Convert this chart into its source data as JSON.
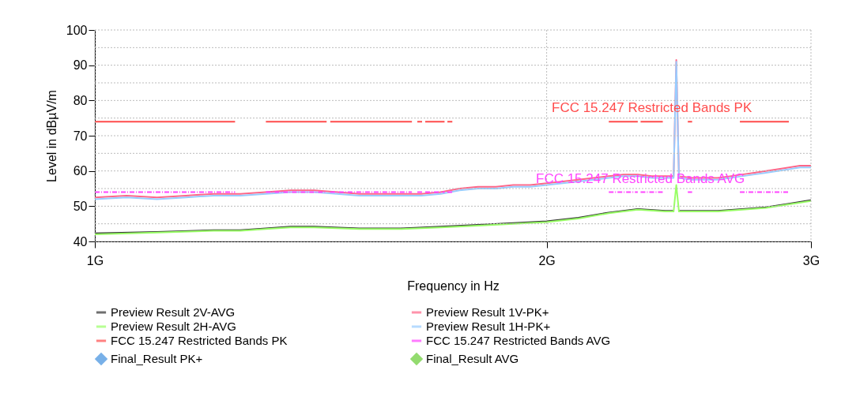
{
  "chart_data": {
    "type": "line",
    "xlabel": "Frequency in Hz",
    "ylabel": "Level in dBµV/m",
    "log": "x",
    "xlim": [
      1,
      3
    ],
    "xticks": [
      {
        "value": 1,
        "label": "1G"
      },
      {
        "value": 2,
        "label": "2G"
      },
      {
        "value": 3,
        "label": "3G"
      }
    ],
    "ylim": [
      40,
      100
    ],
    "yticks": [
      40,
      {
        "value": 45,
        "label": null
      },
      50,
      {
        "value": 55,
        "label": null
      },
      60,
      {
        "value": 65,
        "label": null
      },
      70,
      {
        "value": 75,
        "label": null
      },
      80,
      {
        "value": 85,
        "label": null
      },
      90,
      {
        "value": 95,
        "label": null
      },
      100
    ],
    "grid": true,
    "legend": "bottom",
    "series": [
      {
        "name": "Preview Result 2V-AVG",
        "color": "#333333",
        "x": [
          1.0,
          1.1,
          1.2,
          1.25,
          1.3,
          1.35,
          1.4,
          1.5,
          1.6,
          1.7,
          1.8,
          1.9,
          2.0,
          2.1,
          2.2,
          2.3,
          2.4,
          2.43,
          2.44,
          2.45,
          2.5,
          2.6,
          2.7,
          2.8,
          2.9,
          3.0
        ],
        "values": [
          42.3,
          42.7,
          43.2,
          43.2,
          43.7,
          44.2,
          44.2,
          43.7,
          43.7,
          44.2,
          44.7,
          45.2,
          45.7,
          46.7,
          48.2,
          49.2,
          48.7,
          48.7,
          null,
          48.7,
          48.7,
          48.7,
          49.2,
          49.7,
          50.7,
          51.7
        ]
      },
      {
        "name": "Preview Result 1V-PK+",
        "color": "#ff6688",
        "x": [
          1.0,
          1.05,
          1.1,
          1.15,
          1.2,
          1.25,
          1.3,
          1.35,
          1.4,
          1.45,
          1.5,
          1.55,
          1.6,
          1.65,
          1.7,
          1.75,
          1.8,
          1.85,
          1.9,
          1.95,
          2.0,
          2.05,
          2.1,
          2.15,
          2.2,
          2.25,
          2.3,
          2.35,
          2.4,
          2.43,
          2.44,
          2.45,
          2.5,
          2.55,
          2.6,
          2.65,
          2.7,
          2.75,
          2.8,
          2.85,
          2.9,
          2.95,
          3.0
        ],
        "values": [
          52.5,
          53,
          52.5,
          53,
          53.5,
          53.5,
          54,
          54.5,
          54.5,
          54,
          53.5,
          53.5,
          53.5,
          53.5,
          54,
          55,
          55.5,
          55.5,
          56,
          56,
          56.5,
          57,
          57.5,
          58,
          58.5,
          59,
          59,
          58.5,
          58.5,
          58.5,
          91.5,
          58.5,
          58,
          58,
          58,
          58.5,
          59,
          59.5,
          60,
          60.5,
          61,
          61.5,
          61.5
        ]
      },
      {
        "name": "Preview Result 2H-AVG",
        "color": "#99ff66",
        "x": [
          1.0,
          1.1,
          1.2,
          1.25,
          1.3,
          1.35,
          1.4,
          1.5,
          1.6,
          1.7,
          1.8,
          1.9,
          2.0,
          2.1,
          2.2,
          2.3,
          2.4,
          2.43,
          2.44,
          2.45,
          2.5,
          2.6,
          2.7,
          2.8,
          2.9,
          3.0
        ],
        "values": [
          42,
          42.5,
          43,
          43,
          43.5,
          44,
          44,
          43.5,
          43.5,
          44,
          44.5,
          45,
          45.5,
          46.5,
          48,
          49,
          48.5,
          48.5,
          56,
          48.5,
          48.5,
          48.5,
          49,
          49.5,
          50.5,
          51.5
        ]
      },
      {
        "name": "Preview Result 1H-PK+",
        "color": "#99ccff",
        "x": [
          1.0,
          1.05,
          1.1,
          1.15,
          1.2,
          1.25,
          1.3,
          1.35,
          1.4,
          1.45,
          1.5,
          1.55,
          1.6,
          1.65,
          1.7,
          1.75,
          1.8,
          1.85,
          1.9,
          1.95,
          2.0,
          2.05,
          2.1,
          2.15,
          2.2,
          2.25,
          2.3,
          2.35,
          2.4,
          2.43,
          2.44,
          2.45,
          2.5,
          2.55,
          2.6,
          2.65,
          2.7,
          2.75,
          2.8,
          2.85,
          2.9,
          2.95,
          3.0
        ],
        "values": [
          52,
          52.5,
          52,
          52.5,
          53,
          53,
          53.5,
          54,
          54,
          53.5,
          53,
          53,
          53,
          53,
          53.5,
          54.5,
          55,
          55,
          55.5,
          55.5,
          56,
          56.5,
          57,
          57.5,
          58,
          58.5,
          58.5,
          58,
          58,
          58,
          91,
          58,
          57.5,
          57.5,
          57.5,
          58,
          58.5,
          59,
          59.5,
          60,
          60.5,
          61,
          61
        ]
      },
      {
        "name": "FCC 15.247 Restricted Bands PK",
        "color": "#ff4c4c",
        "line_style": "solid",
        "x": [
          1.0,
          1.24,
          1.27,
          1.3,
          1.427,
          1.431,
          1.435,
          1.6265,
          1.633,
          1.64,
          1.652,
          1.656,
          1.66,
          1.71,
          1.714,
          1.7175,
          1.7305,
          1.9,
          2.2,
          2.3,
          2.305,
          2.31,
          2.39,
          2.44,
          2.4835,
          2.5,
          2.6,
          2.69,
          2.9
        ],
        "values": [
          74,
          74,
          null,
          74,
          74,
          null,
          74,
          74,
          null,
          74,
          74,
          null,
          74,
          74,
          null,
          74,
          74,
          null,
          74,
          74,
          null,
          74,
          74,
          null,
          74,
          74,
          null,
          74,
          74
        ]
      },
      {
        "name": "FCC 15.247 Restricted Bands AVG",
        "color": "#ff44ff",
        "line_style": "dashed",
        "x": [
          1.0,
          1.24,
          1.27,
          1.3,
          1.427,
          1.431,
          1.435,
          1.6265,
          1.633,
          1.64,
          1.652,
          1.656,
          1.66,
          1.71,
          1.714,
          1.7175,
          1.7305,
          1.9,
          2.2,
          2.3,
          2.305,
          2.31,
          2.39,
          2.44,
          2.4835,
          2.5,
          2.6,
          2.69,
          2.9
        ],
        "values": [
          54,
          54,
          null,
          54,
          54,
          null,
          54,
          54,
          null,
          54,
          54,
          null,
          54,
          54,
          null,
          54,
          54,
          null,
          54,
          54,
          null,
          54,
          54,
          null,
          54,
          54,
          null,
          54,
          54
        ]
      },
      {
        "name": "Final_Result PK+",
        "color": "#3f8fdf",
        "type": "scatter",
        "marker": "diamond"
      },
      {
        "name": "Final_Result AVG",
        "color": "#66cc33",
        "type": "scatter",
        "marker": "diamond"
      }
    ],
    "annotations": [
      "FCC 15.247 Restricted Bands PK",
      "FCC 15.247 Restricted Bands AVG"
    ]
  }
}
